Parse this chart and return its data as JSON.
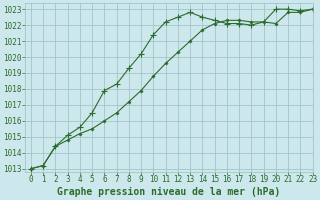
{
  "title": "Graphe pression niveau de la mer (hPa)",
  "background_color": "#cce8ec",
  "grid_color": "#9bbfc4",
  "line_color": "#2d6b2d",
  "xlim": [
    -0.5,
    23
  ],
  "ylim": [
    1012.8,
    1023.4
  ],
  "xticks": [
    0,
    1,
    2,
    3,
    4,
    5,
    6,
    7,
    8,
    9,
    10,
    11,
    12,
    13,
    14,
    15,
    16,
    17,
    18,
    19,
    20,
    21,
    22,
    23
  ],
  "yticks": [
    1013,
    1014,
    1015,
    1016,
    1017,
    1018,
    1019,
    1020,
    1021,
    1022,
    1023
  ],
  "series1_x": [
    0,
    1,
    2,
    3,
    4,
    5,
    6,
    7,
    8,
    9,
    10,
    11,
    12,
    13,
    14,
    15,
    16,
    17,
    18,
    19,
    20,
    21,
    22,
    23
  ],
  "series1_y": [
    1013.0,
    1013.2,
    1014.4,
    1014.8,
    1015.2,
    1015.5,
    1016.0,
    1016.5,
    1017.2,
    1017.9,
    1018.8,
    1019.6,
    1020.3,
    1021.0,
    1021.7,
    1022.1,
    1022.3,
    1022.3,
    1022.2,
    1022.2,
    1022.1,
    1022.8,
    1022.8,
    1023.0
  ],
  "series2_x": [
    0,
    1,
    2,
    3,
    4,
    5,
    6,
    7,
    8,
    9,
    10,
    11,
    12,
    13,
    14,
    15,
    16,
    17,
    18,
    19,
    20,
    21,
    22,
    23
  ],
  "series2_y": [
    1013.0,
    1013.2,
    1014.4,
    1015.1,
    1015.6,
    1016.5,
    1017.9,
    1018.3,
    1019.3,
    1020.2,
    1021.4,
    1022.2,
    1022.5,
    1022.8,
    1022.5,
    1022.3,
    1022.1,
    1022.1,
    1022.0,
    1022.2,
    1023.0,
    1023.0,
    1022.9,
    1023.0
  ],
  "xlabel_fontsize": 7.0,
  "ytick_fontsize": 5.5,
  "xtick_fontsize": 5.5,
  "linewidth": 0.8,
  "markersize": 2.5
}
